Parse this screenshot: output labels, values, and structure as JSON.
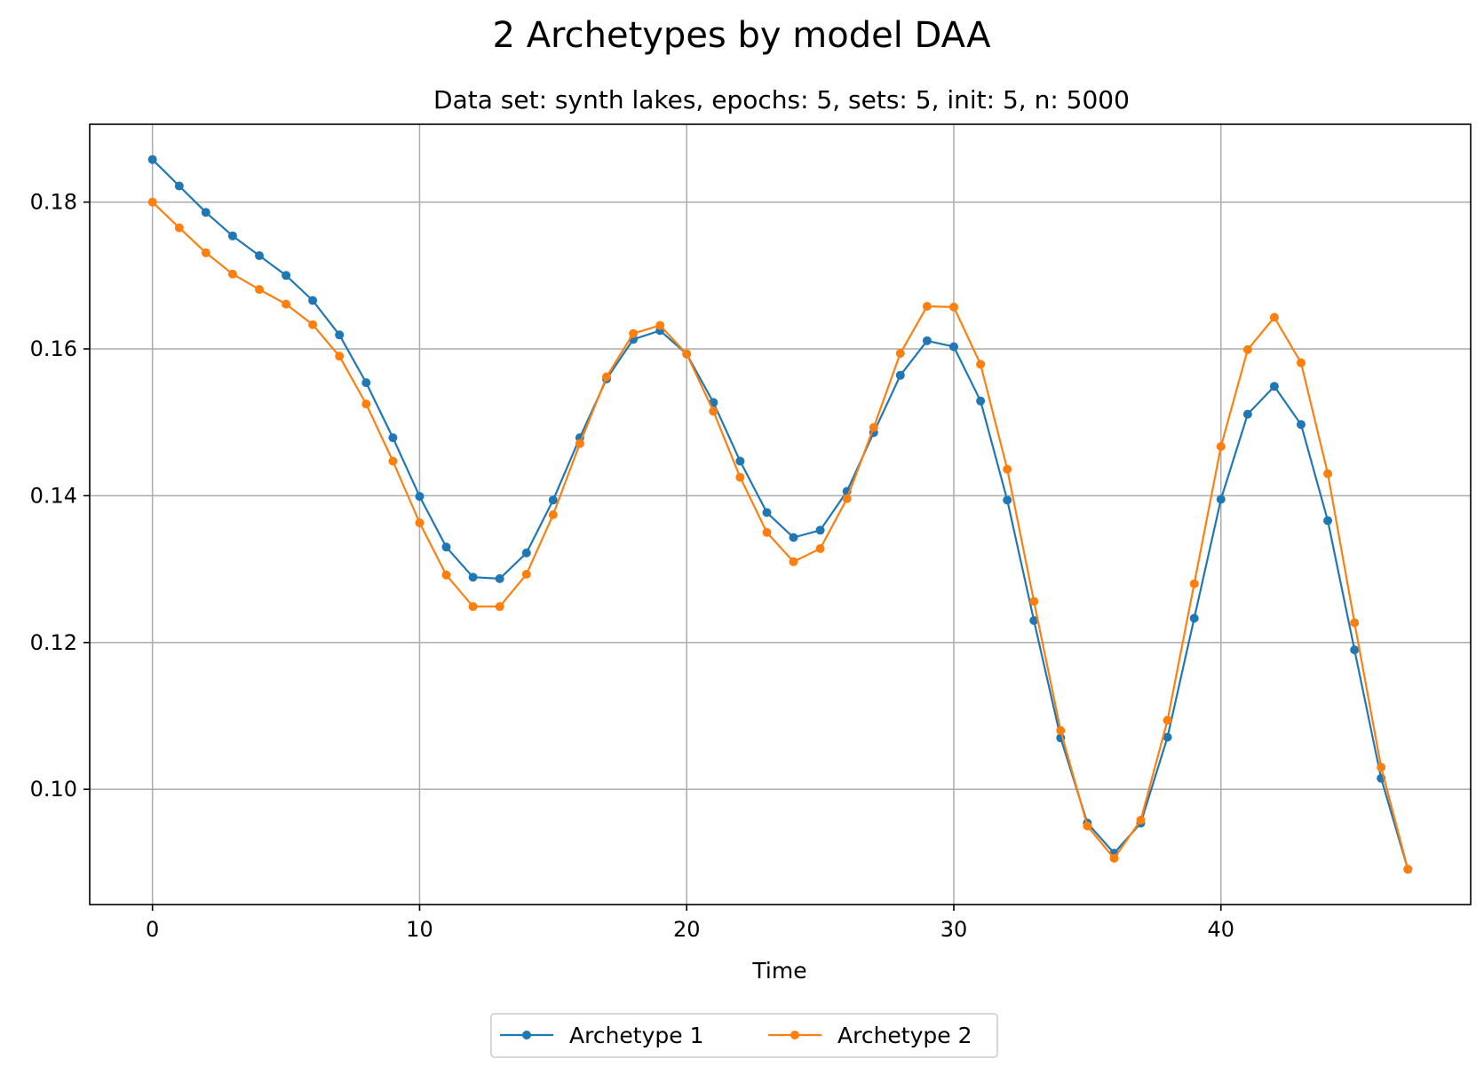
{
  "chart_data": {
    "type": "line",
    "title": "2 Archetypes by model DAA",
    "subtitle": "Data set: synth lakes, epochs: 5, sets: 5, init: 5, n: 5000",
    "xlabel": "Time",
    "ylabel": "",
    "xlim": [
      -2.35,
      49.35
    ],
    "ylim": [
      0.0843,
      0.1906
    ],
    "xticks": [
      0,
      10,
      20,
      30,
      40
    ],
    "yticks": [
      0.1,
      0.12,
      0.14,
      0.16,
      0.18
    ],
    "xtick_labels": [
      "0",
      "10",
      "20",
      "30",
      "40"
    ],
    "ytick_labels": [
      "0.10",
      "0.12",
      "0.14",
      "0.16",
      "0.18"
    ],
    "grid": true,
    "legend_position": "bottom-center",
    "x": [
      0,
      1,
      2,
      3,
      4,
      5,
      6,
      7,
      8,
      9,
      10,
      11,
      12,
      13,
      14,
      15,
      16,
      17,
      18,
      19,
      20,
      21,
      22,
      23,
      24,
      25,
      26,
      27,
      28,
      29,
      30,
      31,
      32,
      33,
      34,
      35,
      36,
      37,
      38,
      39,
      40,
      41,
      42,
      43,
      44,
      45,
      46,
      47
    ],
    "series": [
      {
        "name": "Archetype 1",
        "color": "#1f77b4",
        "values": [
          0.1858,
          0.1822,
          0.1786,
          0.1754,
          0.1727,
          0.17,
          0.1666,
          0.1619,
          0.1554,
          0.1479,
          0.1399,
          0.133,
          0.1289,
          0.1287,
          0.1322,
          0.1394,
          0.1479,
          0.1559,
          0.1613,
          0.1625,
          0.1593,
          0.1527,
          0.1447,
          0.1377,
          0.1343,
          0.1353,
          0.1406,
          0.1486,
          0.1564,
          0.1611,
          0.1603,
          0.1529,
          0.1394,
          0.123,
          0.107,
          0.0954,
          0.0913,
          0.0954,
          0.1071,
          0.1233,
          0.1395,
          0.1511,
          0.1549,
          0.1497,
          0.1366,
          0.119,
          0.1015,
          0.0891
        ]
      },
      {
        "name": "Archetype 2",
        "color": "#ff7f0e",
        "values": [
          0.18,
          0.1765,
          0.1731,
          0.1702,
          0.1681,
          0.1661,
          0.1633,
          0.159,
          0.1525,
          0.1447,
          0.1363,
          0.1292,
          0.1249,
          0.1249,
          0.1293,
          0.1374,
          0.1471,
          0.1562,
          0.1621,
          0.1632,
          0.1593,
          0.1515,
          0.1425,
          0.135,
          0.131,
          0.1328,
          0.1396,
          0.1493,
          0.1594,
          0.1658,
          0.1657,
          0.1579,
          0.1436,
          0.1256,
          0.108,
          0.095,
          0.0906,
          0.0958,
          0.1094,
          0.128,
          0.1467,
          0.1599,
          0.1643,
          0.1581,
          0.143,
          0.1227,
          0.103,
          0.0891
        ]
      }
    ]
  }
}
